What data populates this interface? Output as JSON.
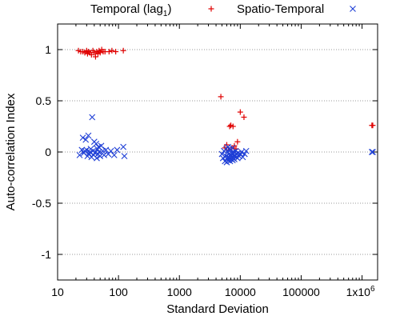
{
  "chart_data": {
    "type": "scatter",
    "title": "",
    "xlabel": "Standard Deviation",
    "ylabel": "Auto-correlation Index",
    "xscale": "log",
    "xlim": [
      10,
      1800000
    ],
    "ylim": [
      -1.25,
      1.25
    ],
    "x_ticks": [
      10,
      100,
      1000,
      10000,
      100000,
      1000000
    ],
    "x_tick_labels": [
      "10",
      "100",
      "1000",
      "10000",
      "100000",
      "1x10^6"
    ],
    "y_ticks": [
      1,
      0.5,
      0,
      -0.5,
      -1
    ],
    "y_tick_labels": [
      "1",
      "0.5",
      "0",
      "-0.5",
      "-1"
    ],
    "grid": "horizontal dotted at y ticks",
    "legend_position": "top, above plot",
    "series": [
      {
        "name": "Temporal (lag1)",
        "legend_label": "Temporal (lag",
        "legend_subscript": "1",
        "legend_suffix": ")",
        "marker": "plus",
        "color": "#e00000",
        "points": [
          [
            22,
            0.99
          ],
          [
            24,
            0.98
          ],
          [
            26,
            0.98
          ],
          [
            28,
            0.97
          ],
          [
            30,
            0.99
          ],
          [
            31,
            0.96
          ],
          [
            32,
            0.98
          ],
          [
            34,
            0.97
          ],
          [
            36,
            0.95
          ],
          [
            38,
            0.99
          ],
          [
            40,
            0.97
          ],
          [
            42,
            0.93
          ],
          [
            44,
            0.98
          ],
          [
            46,
            0.96
          ],
          [
            48,
            0.99
          ],
          [
            50,
            0.97
          ],
          [
            53,
            1.0
          ],
          [
            56,
            0.98
          ],
          [
            60,
            0.98
          ],
          [
            70,
            0.98
          ],
          [
            78,
            0.99
          ],
          [
            90,
            0.98
          ],
          [
            120,
            0.99
          ],
          [
            4800,
            0.54
          ],
          [
            5600,
            0.04
          ],
          [
            6000,
            0.07
          ],
          [
            6400,
            0.02
          ],
          [
            6700,
            0.25
          ],
          [
            7000,
            0.26
          ],
          [
            7300,
            0.04
          ],
          [
            7600,
            0.25
          ],
          [
            8000,
            0.06
          ],
          [
            10000,
            0.39
          ],
          [
            11500,
            0.34
          ],
          [
            8500,
            0.03
          ],
          [
            9000,
            0.1
          ],
          [
            1450000,
            0.26
          ],
          [
            1500000,
            0.26
          ]
        ]
      },
      {
        "name": "Spatio-Temporal",
        "marker": "x",
        "color": "#1f3fd6",
        "points": [
          [
            23,
            -0.03
          ],
          [
            25,
            0.02
          ],
          [
            26,
            0.14
          ],
          [
            27,
            -0.01
          ],
          [
            28,
            0.01
          ],
          [
            29,
            0.12
          ],
          [
            30,
            0.02
          ],
          [
            31,
            -0.04
          ],
          [
            32,
            0.16
          ],
          [
            33,
            -0.02
          ],
          [
            34,
            0.0
          ],
          [
            35,
            0.03
          ],
          [
            36,
            -0.05
          ],
          [
            37,
            0.34
          ],
          [
            38,
            0.01
          ],
          [
            39,
            -0.03
          ],
          [
            40,
            0.1
          ],
          [
            41,
            -0.01
          ],
          [
            42,
            0.0
          ],
          [
            43,
            0.08
          ],
          [
            44,
            -0.06
          ],
          [
            45,
            0.03
          ],
          [
            46,
            -0.02
          ],
          [
            47,
            0.05
          ],
          [
            48,
            0.0
          ],
          [
            50,
            -0.04
          ],
          [
            52,
            0.06
          ],
          [
            55,
            0.01
          ],
          [
            58,
            -0.03
          ],
          [
            62,
            0.02
          ],
          [
            68,
            -0.02
          ],
          [
            75,
            0.01
          ],
          [
            85,
            -0.03
          ],
          [
            95,
            0.02
          ],
          [
            120,
            0.05
          ],
          [
            125,
            -0.04
          ],
          [
            5000,
            -0.02
          ],
          [
            5200,
            -0.06
          ],
          [
            5400,
            0.01
          ],
          [
            5600,
            -0.09
          ],
          [
            5800,
            -0.04
          ],
          [
            6000,
            -0.1
          ],
          [
            6100,
            -0.07
          ],
          [
            6200,
            0.0
          ],
          [
            6300,
            -0.05
          ],
          [
            6400,
            -0.08
          ],
          [
            6500,
            -0.02
          ],
          [
            6600,
            0.03
          ],
          [
            6700,
            -0.06
          ],
          [
            6800,
            -0.09
          ],
          [
            6900,
            0.02
          ],
          [
            7000,
            -0.03
          ],
          [
            7100,
            -0.07
          ],
          [
            7200,
            -0.01
          ],
          [
            7300,
            -0.05
          ],
          [
            7400,
            0.04
          ],
          [
            7500,
            -0.08
          ],
          [
            7600,
            -0.02
          ],
          [
            7700,
            -0.06
          ],
          [
            7800,
            0.0
          ],
          [
            7900,
            -0.04
          ],
          [
            8000,
            -0.07
          ],
          [
            8200,
            -0.03
          ],
          [
            8400,
            0.01
          ],
          [
            8600,
            -0.05
          ],
          [
            8800,
            -0.02
          ],
          [
            9000,
            -0.06
          ],
          [
            9300,
            -0.01
          ],
          [
            9600,
            -0.04
          ],
          [
            10000,
            -0.02
          ],
          [
            10500,
            0.0
          ],
          [
            11000,
            -0.05
          ],
          [
            11800,
            -0.02
          ],
          [
            12500,
            0.01
          ],
          [
            6300,
            0.05
          ],
          [
            5900,
            0.03
          ],
          [
            1450000,
            0.0
          ],
          [
            1500000,
            0.0
          ]
        ]
      }
    ]
  }
}
